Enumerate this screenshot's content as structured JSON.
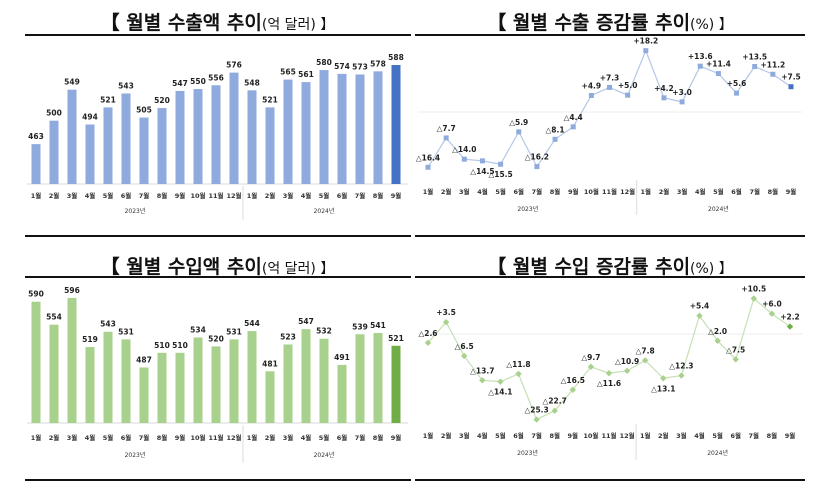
{
  "chart_data": [
    {
      "type": "bar",
      "title": "【 월별 수출액 추이",
      "unit": "(억 달러) 】",
      "categories": [
        "1월",
        "2월",
        "3월",
        "4월",
        "5월",
        "6월",
        "7월",
        "8월",
        "9월",
        "10월",
        "11월",
        "12월",
        "1월",
        "2월",
        "3월",
        "4월",
        "5월",
        "6월",
        "7월",
        "8월",
        "9월"
      ],
      "groups": [
        "2023년",
        "2024년"
      ],
      "values": [
        463,
        500,
        549,
        494,
        521,
        543,
        505,
        520,
        547,
        550,
        556,
        576,
        548,
        521,
        565,
        561,
        580,
        574,
        573,
        578,
        588
      ],
      "ylim": [
        400,
        600
      ],
      "color": "#8FAADC",
      "highlight_color": "#4472C4"
    },
    {
      "type": "line",
      "title": "【 월별 수출 증감률 추이",
      "unit": "(%) 】",
      "categories": [
        "1월",
        "2월",
        "3월",
        "4월",
        "5월",
        "6월",
        "7월",
        "8월",
        "9월",
        "10월",
        "11월",
        "12월",
        "1월",
        "2월",
        "3월",
        "4월",
        "5월",
        "6월",
        "7월",
        "8월",
        "9월"
      ],
      "groups": [
        "2023년",
        "2024년"
      ],
      "values": [
        -16.4,
        -7.7,
        -14.0,
        -14.5,
        -15.5,
        -5.9,
        -16.2,
        -8.1,
        -4.4,
        4.9,
        7.3,
        5.0,
        18.2,
        4.2,
        3.0,
        13.6,
        11.4,
        5.6,
        13.5,
        11.2,
        7.5
      ],
      "labels": [
        "△16.4",
        "△7.7",
        "△14.0",
        "△14.5",
        "△15.5",
        "△5.9",
        "△16.2",
        "△8.1",
        "△4.4",
        "+4.9",
        "+7.3",
        "+5.0",
        "+18.2",
        "+4.2",
        "+3.0",
        "+13.6",
        "+11.4",
        "+5.6",
        "+13.5",
        "+11.2",
        "+7.5"
      ],
      "color": "#8FAADC",
      "line_color": "#B4C7E7",
      "highlight_color": "#4472C4",
      "marker": "square"
    },
    {
      "type": "bar",
      "title": "【 월별 수입액 추이",
      "unit": "(억 달러) 】",
      "categories": [
        "1월",
        "2월",
        "3월",
        "4월",
        "5월",
        "6월",
        "7월",
        "8월",
        "9월",
        "10월",
        "11월",
        "12월",
        "1월",
        "2월",
        "3월",
        "4월",
        "5월",
        "6월",
        "7월",
        "8월",
        "9월"
      ],
      "groups": [
        "2023년",
        "2024년"
      ],
      "values": [
        590,
        554,
        596,
        519,
        543,
        531,
        487,
        510,
        510,
        534,
        520,
        531,
        544,
        481,
        523,
        547,
        532,
        491,
        539,
        541,
        521
      ],
      "ylim": [
        400,
        600
      ],
      "color": "#A9D18E",
      "highlight_color": "#70AD47"
    },
    {
      "type": "line",
      "title": "【 월별 수입 증감률 추이",
      "unit": "(%) 】",
      "categories": [
        "1월",
        "2월",
        "3월",
        "4월",
        "5월",
        "6월",
        "7월",
        "8월",
        "9월",
        "10월",
        "11월",
        "12월",
        "1월",
        "2월",
        "3월",
        "4월",
        "5월",
        "6월",
        "7월",
        "8월",
        "9월"
      ],
      "groups": [
        "2023년",
        "2024년"
      ],
      "values": [
        -2.6,
        3.5,
        -6.5,
        -13.7,
        -14.1,
        -11.8,
        -25.3,
        -22.7,
        -16.5,
        -9.7,
        -11.6,
        -10.9,
        -7.8,
        -13.1,
        -12.3,
        5.4,
        -2.0,
        -7.5,
        10.5,
        6.0,
        2.2
      ],
      "labels": [
        "△2.6",
        "+3.5",
        "△6.5",
        "△13.7",
        "△14.1",
        "△11.8",
        "△25.3",
        "△22.7",
        "△16.5",
        "△9.7",
        "△11.6",
        "△10.9",
        "△7.8",
        "△13.1",
        "△12.3",
        "+5.4",
        "△2.0",
        "△7.5",
        "+10.5",
        "+6.0",
        "+2.2"
      ],
      "color": "#A9D18E",
      "line_color": "#C5E0B4",
      "highlight_color": "#70AD47",
      "marker": "diamond"
    }
  ]
}
